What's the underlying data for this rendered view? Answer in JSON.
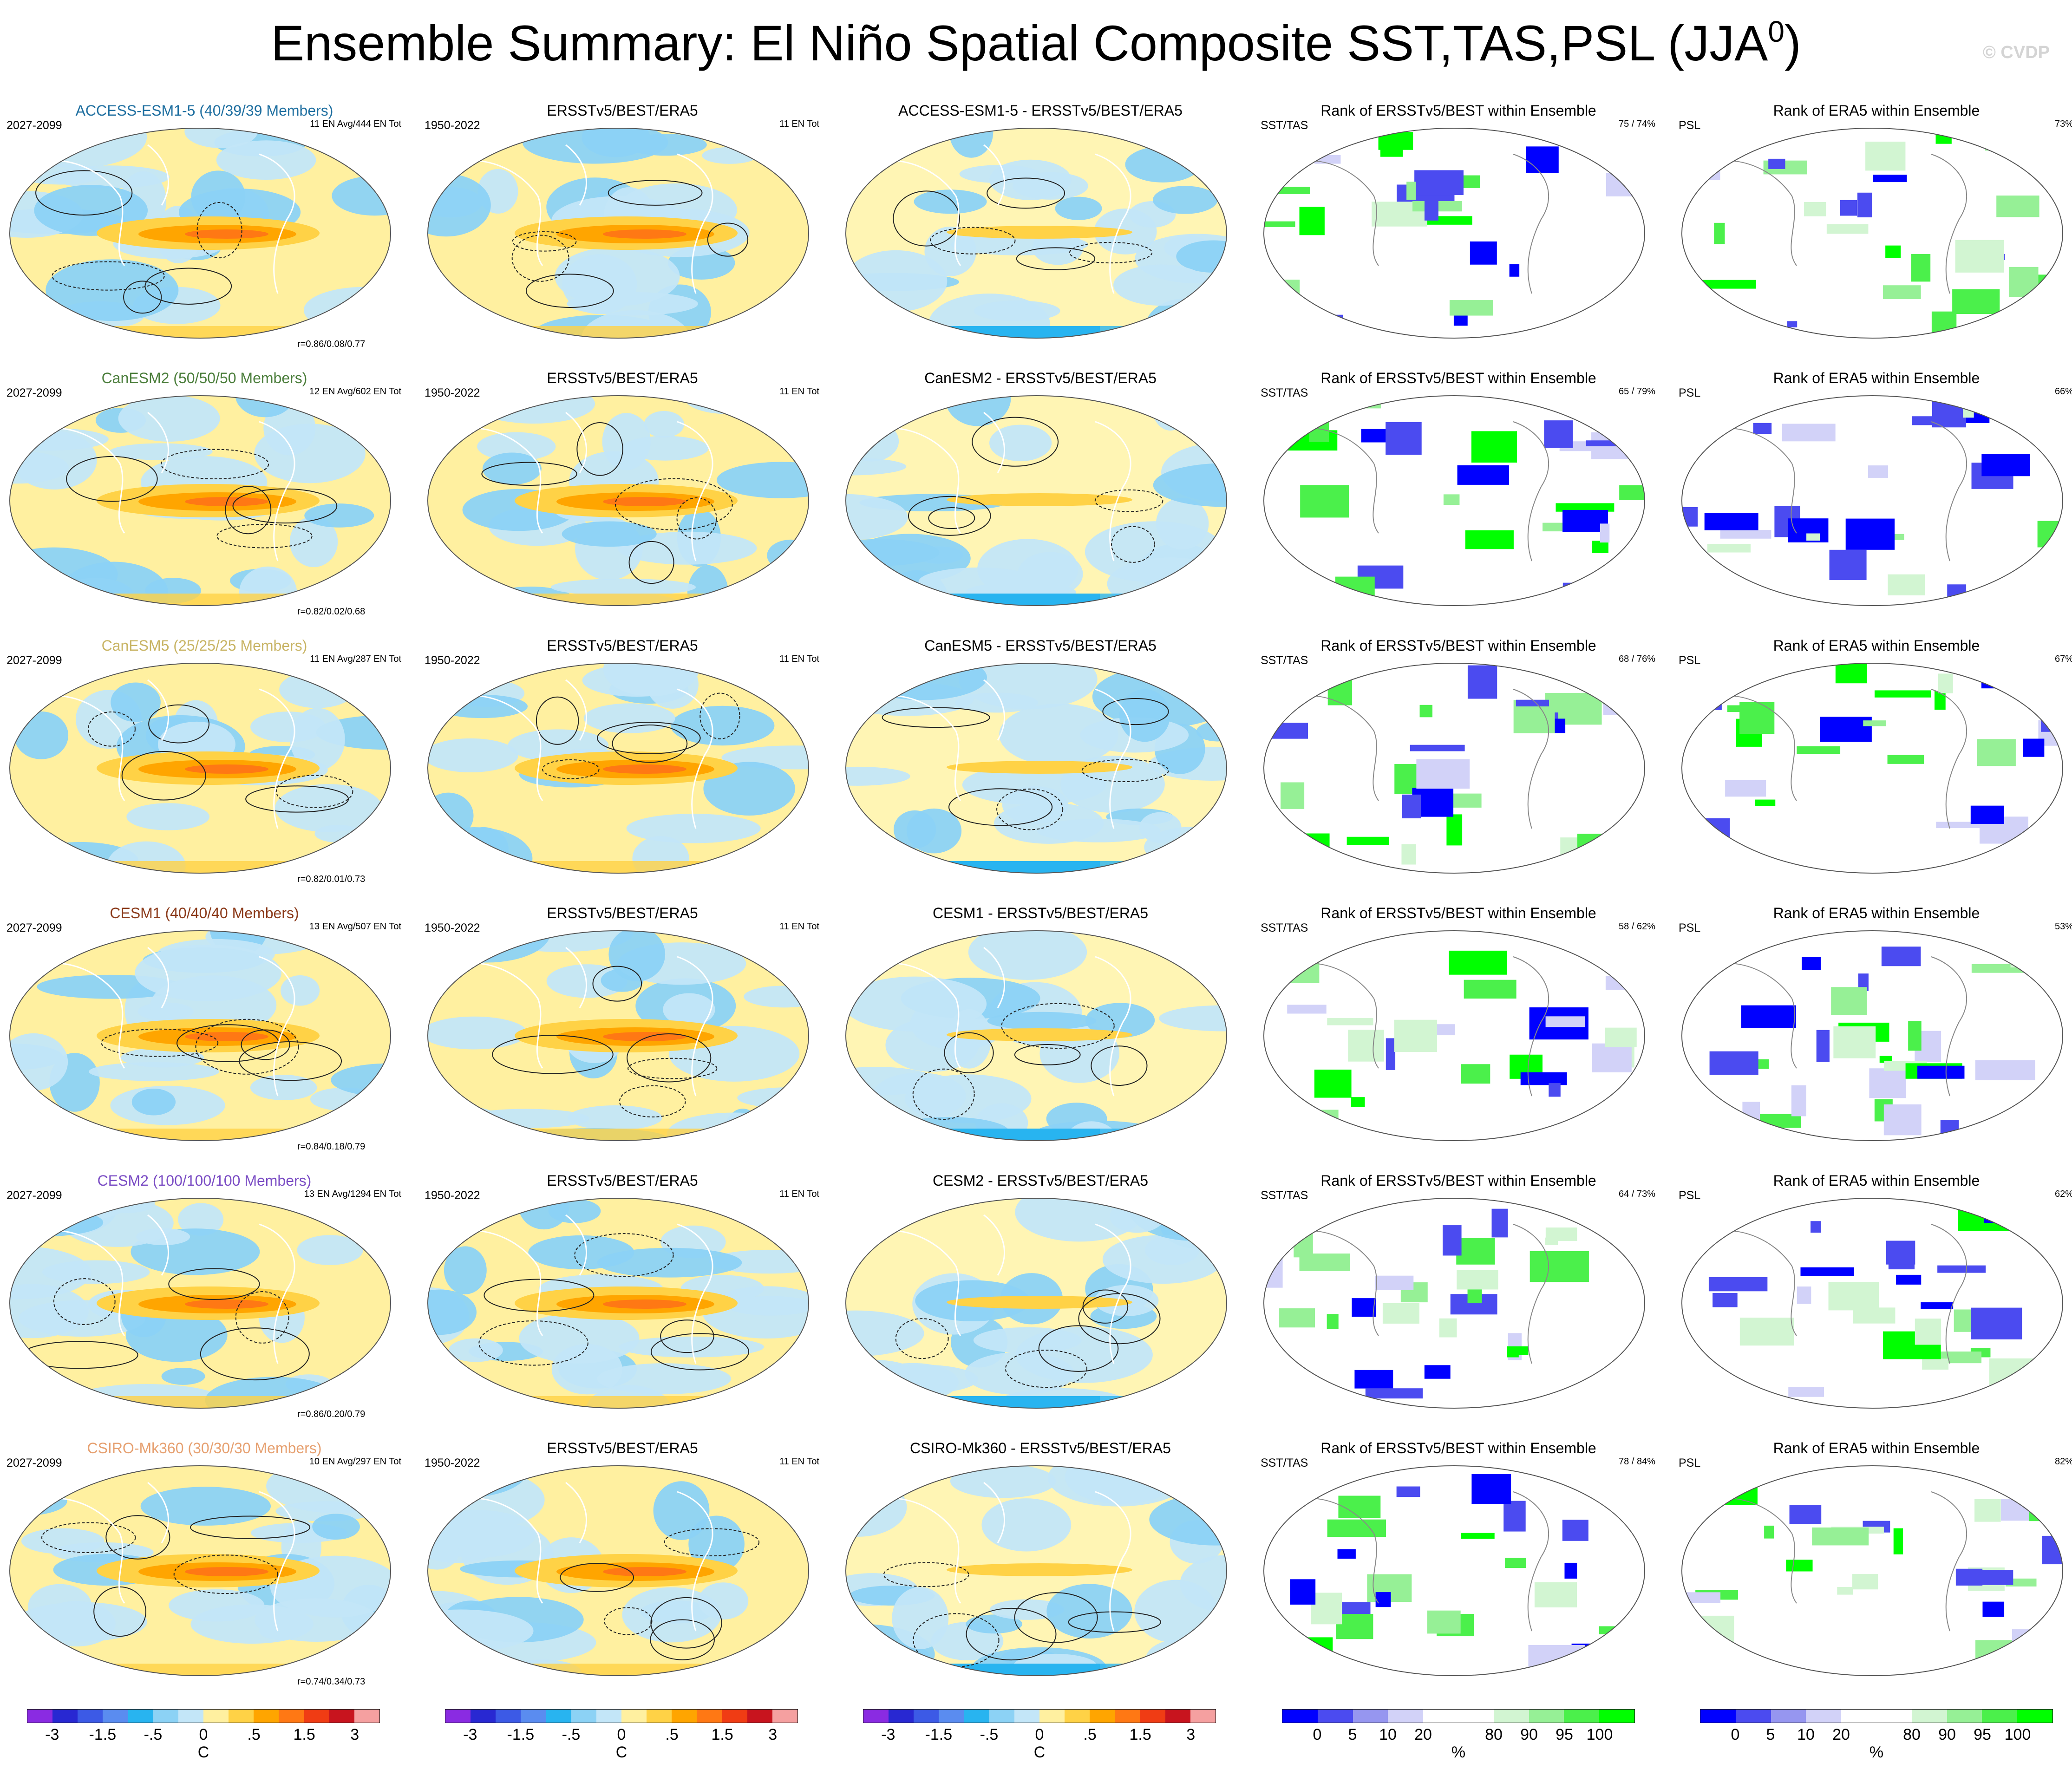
{
  "title": "Ensemble Summary: El Niño Spatial Composite SST,TAS,PSL (JJA",
  "title_sup": "0",
  "title_close": ")",
  "watermark": "© CVDP",
  "rows": [
    {
      "model": "ACCESS-ESM1-5 (40/39/39 Members)",
      "model_color": "#1f6fa0",
      "period": "2027-2099",
      "members_note": "11 EN Avg/444 EN Tot",
      "corr": "r=0.86/0.08/0.77",
      "obs_title": "ERSSTv5/BEST/ERA5",
      "obs_period": "1950-2022",
      "obs_note": "11 EN Tot",
      "diff_title": "ACCESS-ESM1-5 - ERSSTv5/BEST/ERA5",
      "rank1_title": "Rank of ERSSTv5/BEST within Ensemble",
      "rank1_left": "SST/TAS",
      "rank1_right": "75 /  74%",
      "rank2_title": "Rank of ERA5 within Ensemble",
      "rank2_left": "PSL",
      "rank2_right": "73%"
    },
    {
      "model": "CanESM2 (50/50/50 Members)",
      "model_color": "#4a7d3a",
      "period": "2027-2099",
      "members_note": "12 EN Avg/602 EN Tot",
      "corr": "r=0.82/0.02/0.68",
      "obs_title": "ERSSTv5/BEST/ERA5",
      "obs_period": "1950-2022",
      "obs_note": "11 EN Tot",
      "diff_title": "CanESM2 - ERSSTv5/BEST/ERA5",
      "rank1_title": "Rank of ERSSTv5/BEST within Ensemble",
      "rank1_left": "SST/TAS",
      "rank1_right": "65 /  79%",
      "rank2_title": "Rank of ERA5 within Ensemble",
      "rank2_left": "PSL",
      "rank2_right": "66%"
    },
    {
      "model": "CanESM5 (25/25/25 Members)",
      "model_color": "#c8b464",
      "period": "2027-2099",
      "members_note": "11 EN Avg/287 EN Tot",
      "corr": "r=0.82/0.01/0.73",
      "obs_title": "ERSSTv5/BEST/ERA5",
      "obs_period": "1950-2022",
      "obs_note": "11 EN Tot",
      "diff_title": "CanESM5 - ERSSTv5/BEST/ERA5",
      "rank1_title": "Rank of ERSSTv5/BEST within Ensemble",
      "rank1_left": "SST/TAS",
      "rank1_right": "68 /  76%",
      "rank2_title": "Rank of ERA5 within Ensemble",
      "rank2_left": "PSL",
      "rank2_right": "67%"
    },
    {
      "model": "CESM1 (40/40/40 Members)",
      "model_color": "#8b3a1a",
      "period": "2027-2099",
      "members_note": "13 EN Avg/507 EN Tot",
      "corr": "r=0.84/0.18/0.79",
      "obs_title": "ERSSTv5/BEST/ERA5",
      "obs_period": "1950-2022",
      "obs_note": "11 EN Tot",
      "diff_title": "CESM1 - ERSSTv5/BEST/ERA5",
      "rank1_title": "Rank of ERSSTv5/BEST within Ensemble",
      "rank1_left": "SST/TAS",
      "rank1_right": "58 /  62%",
      "rank2_title": "Rank of ERA5 within Ensemble",
      "rank2_left": "PSL",
      "rank2_right": "53%"
    },
    {
      "model": "CESM2 (100/100/100 Members)",
      "model_color": "#7a4cc4",
      "period": "2027-2099",
      "members_note": "13 EN Avg/1294 EN Tot",
      "corr": "r=0.86/0.20/0.79",
      "obs_title": "ERSSTv5/BEST/ERA5",
      "obs_period": "1950-2022",
      "obs_note": "11 EN Tot",
      "diff_title": "CESM2 - ERSSTv5/BEST/ERA5",
      "rank1_title": "Rank of ERSSTv5/BEST within Ensemble",
      "rank1_left": "SST/TAS",
      "rank1_right": "64 /  73%",
      "rank2_title": "Rank of ERA5 within Ensemble",
      "rank2_left": "PSL",
      "rank2_right": "62%"
    },
    {
      "model": "CSIRO-Mk360 (30/30/30 Members)",
      "model_color": "#e6a070",
      "period": "2027-2099",
      "members_note": "10 EN Avg/297 EN Tot",
      "corr": "r=0.74/0.34/0.73",
      "obs_title": "ERSSTv5/BEST/ERA5",
      "obs_period": "1950-2022",
      "obs_note": "11 EN Tot",
      "diff_title": "CSIRO-Mk360 - ERSSTv5/BEST/ERA5",
      "rank1_title": "Rank of ERSSTv5/BEST within Ensemble",
      "rank1_left": "SST/TAS",
      "rank1_right": "78 /  84%",
      "rank2_title": "Rank of ERA5 within Ensemble",
      "rank2_left": "PSL",
      "rank2_right": "82%"
    }
  ],
  "colorbars": {
    "temp": {
      "unit": "C",
      "ticks": [
        "-3",
        "-1.5",
        "-.5",
        "0",
        ".5",
        "1.5",
        "3"
      ],
      "colors": [
        "#8a2be2",
        "#2828d2",
        "#3c5ae6",
        "#5a8cf0",
        "#28b4f0",
        "#8cd2f5",
        "#c3e6f8",
        "#fff0a0",
        "#ffd246",
        "#ffa500",
        "#ff7814",
        "#f03c14",
        "#c8141e",
        "#f5a0a0"
      ]
    },
    "rank": {
      "unit": "%",
      "ticks": [
        "0",
        "5",
        "10",
        "20",
        "80",
        "90",
        "95",
        "100"
      ],
      "colors": [
        "#0000ff",
        "#4b4bf0",
        "#9696f0",
        "#d2d2f8",
        "#ffffff",
        "#ffffff",
        "#d2f5d2",
        "#96f096",
        "#4bf04b",
        "#00ff00"
      ]
    }
  }
}
